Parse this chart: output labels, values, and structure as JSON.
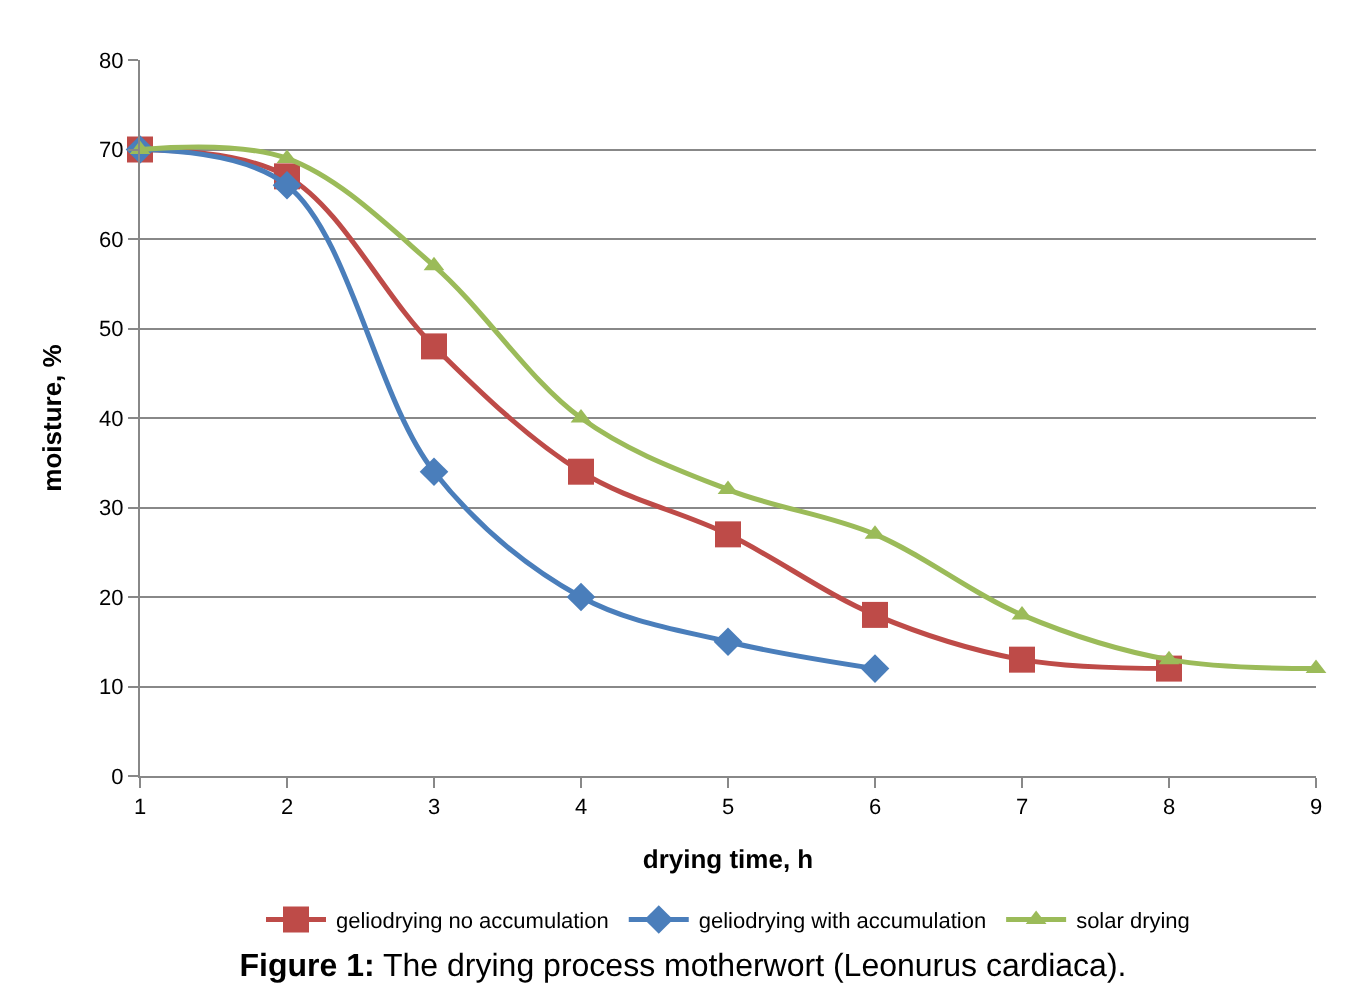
{
  "chart_data": {
    "type": "line",
    "title": "Figure 1: The drying process motherwort (Leonurus cardiaca).",
    "xlabel": "drying time, h",
    "ylabel": "moisture, %",
    "xlim": [
      1,
      9
    ],
    "xticks": [
      1,
      2,
      3,
      4,
      5,
      6,
      7,
      8,
      9
    ],
    "ylim": [
      0,
      80
    ],
    "yticks": [
      0,
      10,
      20,
      30,
      40,
      50,
      60,
      70,
      80
    ],
    "grid": "y",
    "legend": "bottom",
    "series": [
      {
        "name": "geliodrying no accumulation",
        "color": "#be4b48",
        "marker": "square",
        "x": [
          1,
          2,
          3,
          4,
          5,
          6,
          7,
          8
        ],
        "values": [
          70,
          67,
          48,
          34,
          27,
          18,
          13,
          12
        ]
      },
      {
        "name": "geliodrying with accumulation",
        "color": "#4a7ebb",
        "marker": "diamond",
        "x": [
          1,
          2,
          3,
          4,
          5,
          6
        ],
        "values": [
          70,
          66,
          34,
          20,
          15,
          12
        ]
      },
      {
        "name": "solar drying",
        "color": "#9bbb59",
        "marker": "triangle",
        "x": [
          1,
          2,
          3,
          4,
          5,
          6,
          7,
          8,
          9
        ],
        "values": [
          70,
          69,
          57,
          40,
          32,
          27,
          18,
          13,
          12
        ]
      }
    ]
  }
}
